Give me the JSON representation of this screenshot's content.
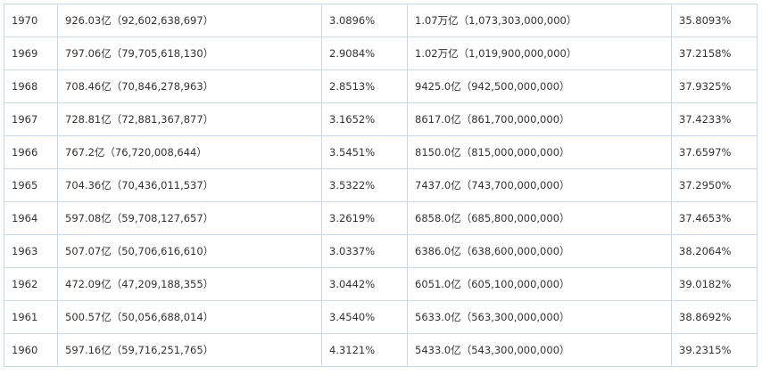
{
  "table": {
    "rows": [
      [
        "1970",
        "926.03亿（92,602,638,697）",
        "3.0896%",
        "1.07万亿（1,073,303,000,000）",
        "35.8093%"
      ],
      [
        "1969",
        "797.06亿（79,705,618,130）",
        "2.9084%",
        "1.02万亿（1,019,900,000,000）",
        "37.2158%"
      ],
      [
        "1968",
        "708.46亿（70,846,278,963）",
        "2.8513%",
        "9425.0亿（942,500,000,000）",
        "37.9325%"
      ],
      [
        "1967",
        "728.81亿（72,881,367,877）",
        "3.1652%",
        "8617.0亿（861,700,000,000）",
        "37.4233%"
      ],
      [
        "1966",
        "767.2亿（76,720,008,644）",
        "3.5451%",
        "8150.0亿（815,000,000,000）",
        "37.6597%"
      ],
      [
        "1965",
        "704.36亿（70,436,011,537）",
        "3.5322%",
        "7437.0亿（743,700,000,000）",
        "37.2950%"
      ],
      [
        "1964",
        "597.08亿（59,708,127,657）",
        "3.2619%",
        "6858.0亿（685,800,000,000）",
        "37.4653%"
      ],
      [
        "1963",
        "507.07亿（50,706,616,610）",
        "3.0337%",
        "6386.0亿（638,600,000,000）",
        "38.2064%"
      ],
      [
        "1962",
        "472.09亿（47,209,188,355）",
        "3.0442%",
        "6051.0亿（605,100,000,000）",
        "39.0182%"
      ],
      [
        "1961",
        "500.57亿（50,056,688,014）",
        "3.4540%",
        "5633.0亿（563,300,000,000）",
        "38.8692%"
      ],
      [
        "1960",
        "597.16亿（59,716,251,765）",
        "4.3121%",
        "5433.0亿（543,300,000,000）",
        "39.2315%"
      ]
    ]
  }
}
